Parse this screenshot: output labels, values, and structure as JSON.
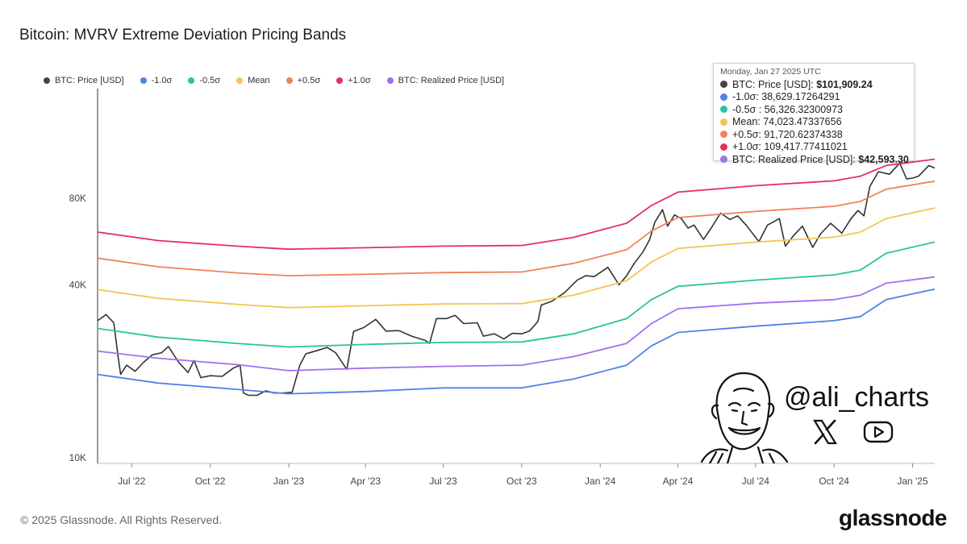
{
  "page": {
    "title": "Bitcoin: MVRV Extreme Deviation Pricing Bands"
  },
  "legend": [
    {
      "label": "BTC: Price [USD]",
      "color": "#444444"
    },
    {
      "label": "-1.0σ",
      "color": "#4e82e6"
    },
    {
      "label": "-0.5σ",
      "color": "#29c2a0"
    },
    {
      "label": "Mean",
      "color": "#f5c452"
    },
    {
      "label": "+0.5σ",
      "color": "#f0825a"
    },
    {
      "label": "+1.0σ",
      "color": "#e5305a"
    },
    {
      "label": "BTC: Realized Price [USD]",
      "color": "#a070f0"
    }
  ],
  "tooltip": {
    "date": "Monday, Jan 27 2025 UTC",
    "rows": [
      {
        "label": "BTC: Price [USD]: ",
        "value": "$101,909.24",
        "bold": true,
        "color": "#444444"
      },
      {
        "label": "-1.0σ: ",
        "value": "38,629.17264291",
        "bold": false,
        "color": "#4e82e6"
      },
      {
        "label": "-0.5σ : ",
        "value": "56,326.32300973",
        "bold": false,
        "color": "#29c2a0"
      },
      {
        "label": "Mean: ",
        "value": "74,023.47337656",
        "bold": false,
        "color": "#f5c452"
      },
      {
        "label": "+0.5σ: ",
        "value": "91,720.62374338",
        "bold": false,
        "color": "#f0825a"
      },
      {
        "label": "+1.0σ: ",
        "value": "109,417.77411021",
        "bold": false,
        "color": "#e5305a"
      },
      {
        "label": "BTC: Realized Price [USD]: ",
        "value": "$42,593.30",
        "bold": true,
        "color": "#a070f0"
      }
    ]
  },
  "footer": {
    "copyright": "© 2025 Glassnode. All Rights Reserved.",
    "brand": "glassnode"
  },
  "watermark": {
    "handle": "@ali_charts",
    "icons": [
      "x-logo-icon",
      "youtube-icon"
    ]
  },
  "chart_data": {
    "type": "line",
    "yscale": "log",
    "yticks": [
      10000,
      40000,
      80000
    ],
    "ytick_labels": [
      "10K",
      "40K",
      "80K"
    ],
    "xticks": [
      "2022-07-01",
      "2022-10-01",
      "2023-01-01",
      "2023-04-01",
      "2023-07-01",
      "2023-10-01",
      "2024-01-01",
      "2024-04-01",
      "2024-07-01",
      "2024-10-01",
      "2025-01-01"
    ],
    "xtick_labels": [
      "Jul '22",
      "Oct '22",
      "Jan '23",
      "Apr '23",
      "Jul '23",
      "Oct '23",
      "Jan '24",
      "Apr '24",
      "Jul '24",
      "Oct '24",
      "Jan '25"
    ],
    "xlim": [
      "2022-05-22",
      "2025-01-27"
    ],
    "series": [
      {
        "name": "BTC: Price [USD]",
        "color": "#333333",
        "width": 1.6,
        "x": [
          "2022-05-22",
          "2022-06-01",
          "2022-06-10",
          "2022-06-15",
          "2022-06-18",
          "2022-06-25",
          "2022-07-05",
          "2022-07-15",
          "2022-07-25",
          "2022-08-05",
          "2022-08-13",
          "2022-08-25",
          "2022-09-05",
          "2022-09-12",
          "2022-09-20",
          "2022-10-01",
          "2022-10-15",
          "2022-10-28",
          "2022-11-05",
          "2022-11-09",
          "2022-11-15",
          "2022-11-25",
          "2022-12-05",
          "2022-12-15",
          "2022-12-25",
          "2023-01-05",
          "2023-01-14",
          "2023-01-21",
          "2023-02-01",
          "2023-02-15",
          "2023-02-25",
          "2023-03-10",
          "2023-03-18",
          "2023-03-30",
          "2023-04-13",
          "2023-04-25",
          "2023-05-10",
          "2023-05-25",
          "2023-06-10",
          "2023-06-15",
          "2023-06-23",
          "2023-07-05",
          "2023-07-15",
          "2023-07-25",
          "2023-08-10",
          "2023-08-17",
          "2023-08-30",
          "2023-09-10",
          "2023-09-20",
          "2023-10-01",
          "2023-10-10",
          "2023-10-20",
          "2023-10-24",
          "2023-11-05",
          "2023-11-20",
          "2023-12-05",
          "2023-12-15",
          "2023-12-25",
          "2024-01-10",
          "2024-01-23",
          "2024-02-01",
          "2024-02-10",
          "2024-02-20",
          "2024-02-28",
          "2024-03-05",
          "2024-03-14",
          "2024-03-20",
          "2024-03-28",
          "2024-04-05",
          "2024-04-13",
          "2024-04-20",
          "2024-05-01",
          "2024-05-10",
          "2024-05-21",
          "2024-06-01",
          "2024-06-10",
          "2024-06-20",
          "2024-07-05",
          "2024-07-15",
          "2024-07-29",
          "2024-08-05",
          "2024-08-15",
          "2024-08-25",
          "2024-09-06",
          "2024-09-15",
          "2024-09-27",
          "2024-10-10",
          "2024-10-21",
          "2024-10-29",
          "2024-11-05",
          "2024-11-12",
          "2024-11-22",
          "2024-12-05",
          "2024-12-17",
          "2024-12-25",
          "2025-01-01",
          "2025-01-08",
          "2025-01-20",
          "2025-01-27"
        ],
        "y": [
          30000,
          31500,
          29500,
          22500,
          19500,
          21000,
          20000,
          21500,
          22800,
          23200,
          24400,
          21500,
          19800,
          21800,
          19000,
          19300,
          19200,
          20500,
          21000,
          16800,
          16500,
          16500,
          17100,
          16800,
          16800,
          16900,
          21000,
          23000,
          23500,
          24200,
          23200,
          20300,
          27500,
          28400,
          30300,
          27600,
          27700,
          26500,
          25600,
          25000,
          30500,
          30500,
          31300,
          29300,
          29500,
          26500,
          27000,
          25900,
          27100,
          27000,
          27600,
          29800,
          34000,
          35000,
          37500,
          41500,
          43000,
          42700,
          46000,
          40000,
          43000,
          47500,
          52000,
          57500,
          66000,
          73000,
          64000,
          70000,
          68000,
          63000,
          64500,
          57500,
          63000,
          71000,
          67500,
          69500,
          64500,
          56500,
          64500,
          68000,
          54500,
          59500,
          64000,
          54000,
          60000,
          65500,
          60500,
          68000,
          72500,
          69500,
          88000,
          99000,
          97000,
          106000,
          93500,
          94000,
          95500,
          104000,
          101909
        ]
      },
      {
        "name": "-1.0σ",
        "color": "#4e82e6",
        "width": 1.8,
        "x": [
          "2022-05-22",
          "2022-08-01",
          "2022-11-01",
          "2023-01-01",
          "2023-04-01",
          "2023-07-01",
          "2023-10-01",
          "2023-12-01",
          "2024-02-01",
          "2024-03-01",
          "2024-04-01",
          "2024-07-01",
          "2024-10-01",
          "2024-11-01",
          "2024-12-01",
          "2025-01-27"
        ],
        "y": [
          19500,
          18200,
          17300,
          16700,
          17000,
          17500,
          17500,
          18800,
          21000,
          24500,
          27300,
          28700,
          30000,
          31000,
          35500,
          38629
        ]
      },
      {
        "name": "BTC: Realized Price [USD]",
        "color": "#a070f0",
        "width": 1.8,
        "x": [
          "2022-05-22",
          "2022-08-01",
          "2022-11-01",
          "2023-01-01",
          "2023-04-01",
          "2023-07-01",
          "2023-10-01",
          "2023-12-01",
          "2024-02-01",
          "2024-03-01",
          "2024-04-01",
          "2024-07-01",
          "2024-10-01",
          "2024-11-01",
          "2024-12-01",
          "2025-01-27"
        ],
        "y": [
          23500,
          22200,
          21100,
          20100,
          20500,
          20800,
          21000,
          22500,
          25000,
          29300,
          33000,
          34500,
          35500,
          36800,
          40500,
          42593
        ]
      },
      {
        "name": "-0.5σ",
        "color": "#29c2a0",
        "width": 1.8,
        "x": [
          "2022-05-22",
          "2022-08-01",
          "2022-11-01",
          "2023-01-01",
          "2023-04-01",
          "2023-07-01",
          "2023-10-01",
          "2023-12-01",
          "2024-02-01",
          "2024-03-01",
          "2024-04-01",
          "2024-07-01",
          "2024-10-01",
          "2024-11-01",
          "2024-12-01",
          "2025-01-27"
        ],
        "y": [
          28200,
          26300,
          25000,
          24300,
          24800,
          25200,
          25300,
          27000,
          30500,
          35500,
          39500,
          41500,
          43300,
          45000,
          51500,
          56326
        ]
      },
      {
        "name": "Mean",
        "color": "#f5c452",
        "width": 1.8,
        "x": [
          "2022-05-22",
          "2022-08-01",
          "2022-11-01",
          "2023-01-01",
          "2023-04-01",
          "2023-07-01",
          "2023-10-01",
          "2023-12-01",
          "2024-02-01",
          "2024-03-01",
          "2024-04-01",
          "2024-07-01",
          "2024-10-01",
          "2024-11-01",
          "2024-12-01",
          "2025-01-27"
        ],
        "y": [
          38500,
          35900,
          34200,
          33300,
          33800,
          34300,
          34400,
          36800,
          41300,
          48000,
          53500,
          56300,
          58600,
          61000,
          68000,
          74023
        ]
      },
      {
        "name": "+0.5σ",
        "color": "#f0825a",
        "width": 1.8,
        "x": [
          "2022-05-22",
          "2022-08-01",
          "2022-11-01",
          "2023-01-01",
          "2023-04-01",
          "2023-07-01",
          "2023-10-01",
          "2023-12-01",
          "2024-02-01",
          "2024-03-01",
          "2024-04-01",
          "2024-07-01",
          "2024-10-01",
          "2024-11-01",
          "2024-12-01",
          "2025-01-27"
        ],
        "y": [
          49500,
          46200,
          44000,
          43000,
          43500,
          44100,
          44300,
          47500,
          53000,
          61500,
          68500,
          72000,
          75000,
          78000,
          86000,
          91720
        ]
      },
      {
        "name": "+1.0σ",
        "color": "#e5305a",
        "width": 1.8,
        "x": [
          "2022-05-22",
          "2022-08-01",
          "2022-11-01",
          "2023-01-01",
          "2023-04-01",
          "2023-07-01",
          "2023-10-01",
          "2023-12-01",
          "2024-02-01",
          "2024-03-01",
          "2024-04-01",
          "2024-07-01",
          "2024-10-01",
          "2024-11-01",
          "2024-12-01",
          "2025-01-27"
        ],
        "y": [
          61000,
          57000,
          54500,
          53200,
          53800,
          54500,
          54800,
          58500,
          65500,
          75500,
          84000,
          88500,
          92000,
          95500,
          104000,
          109417
        ]
      }
    ]
  }
}
